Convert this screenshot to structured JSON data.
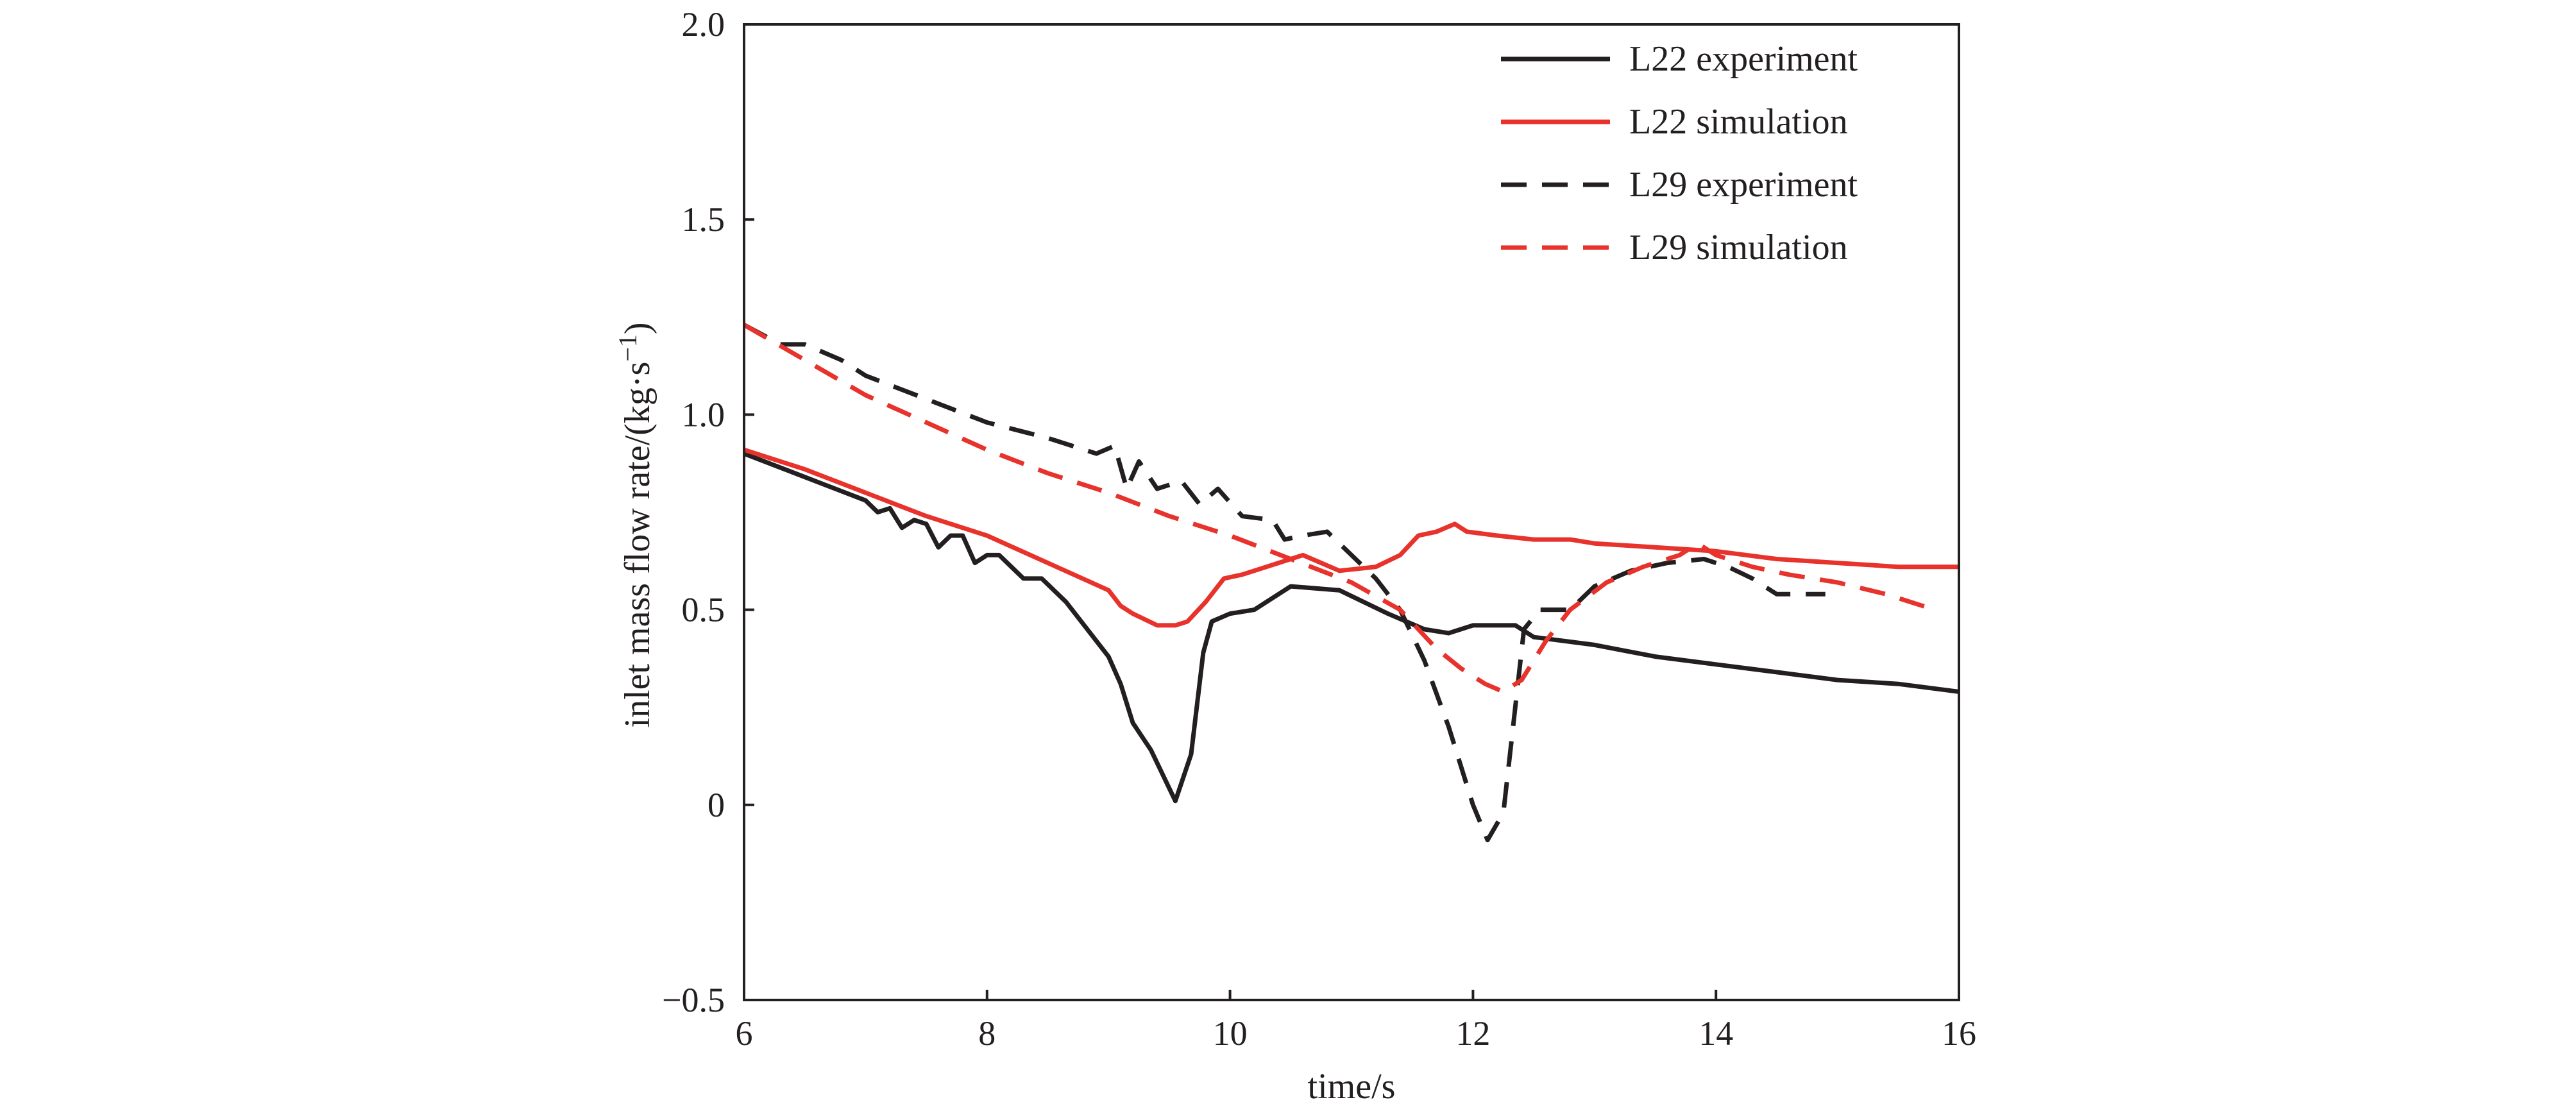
{
  "chart_data": {
    "type": "line",
    "xlabel": "time/s",
    "ylabel_main": "inlet mass flow rate/(kg·s",
    "ylabel_sup": "−1",
    "ylabel_close": ")",
    "xlim": [
      6,
      16
    ],
    "ylim": [
      -0.5,
      2.0
    ],
    "xticks": [
      6,
      8,
      10,
      12,
      14,
      16
    ],
    "xtick_labels": [
      "6",
      "8",
      "10",
      "12",
      "14",
      "16"
    ],
    "yticks": [
      -0.5,
      0,
      0.5,
      1.0,
      1.5,
      2.0
    ],
    "ytick_labels": [
      "−0.5",
      "0",
      "0.5",
      "1.0",
      "1.5",
      "2.0"
    ],
    "grid": false,
    "legend_position": "top-right",
    "series": [
      {
        "name": "L22 experiment",
        "color": "#231f20",
        "dash": "solid",
        "points": [
          [
            6.0,
            0.9
          ],
          [
            6.5,
            0.84
          ],
          [
            7.0,
            0.78
          ],
          [
            7.1,
            0.75
          ],
          [
            7.2,
            0.76
          ],
          [
            7.3,
            0.71
          ],
          [
            7.4,
            0.73
          ],
          [
            7.5,
            0.72
          ],
          [
            7.6,
            0.66
          ],
          [
            7.7,
            0.69
          ],
          [
            7.8,
            0.69
          ],
          [
            7.9,
            0.62
          ],
          [
            8.0,
            0.64
          ],
          [
            8.1,
            0.64
          ],
          [
            8.3,
            0.58
          ],
          [
            8.45,
            0.58
          ],
          [
            8.65,
            0.52
          ],
          [
            9.0,
            0.38
          ],
          [
            9.1,
            0.31
          ],
          [
            9.2,
            0.21
          ],
          [
            9.35,
            0.14
          ],
          [
            9.55,
            0.01
          ],
          [
            9.68,
            0.13
          ],
          [
            9.78,
            0.39
          ],
          [
            9.85,
            0.47
          ],
          [
            10.0,
            0.49
          ],
          [
            10.2,
            0.5
          ],
          [
            10.5,
            0.56
          ],
          [
            10.9,
            0.55
          ],
          [
            11.3,
            0.49
          ],
          [
            11.6,
            0.45
          ],
          [
            11.8,
            0.44
          ],
          [
            12.0,
            0.46
          ],
          [
            12.2,
            0.46
          ],
          [
            12.35,
            0.46
          ],
          [
            12.5,
            0.43
          ],
          [
            13.0,
            0.41
          ],
          [
            13.5,
            0.38
          ],
          [
            14.0,
            0.36
          ],
          [
            14.5,
            0.34
          ],
          [
            15.0,
            0.32
          ],
          [
            15.5,
            0.31
          ],
          [
            16.0,
            0.29
          ]
        ]
      },
      {
        "name": "L22 simulation",
        "color": "#e8322c",
        "dash": "solid",
        "points": [
          [
            6.0,
            0.91
          ],
          [
            6.5,
            0.86
          ],
          [
            7.0,
            0.8
          ],
          [
            7.5,
            0.74
          ],
          [
            8.0,
            0.69
          ],
          [
            8.5,
            0.62
          ],
          [
            9.0,
            0.55
          ],
          [
            9.1,
            0.51
          ],
          [
            9.2,
            0.49
          ],
          [
            9.4,
            0.46
          ],
          [
            9.55,
            0.46
          ],
          [
            9.65,
            0.47
          ],
          [
            9.8,
            0.52
          ],
          [
            9.95,
            0.58
          ],
          [
            10.1,
            0.59
          ],
          [
            10.3,
            0.61
          ],
          [
            10.5,
            0.63
          ],
          [
            10.6,
            0.64
          ],
          [
            10.75,
            0.62
          ],
          [
            10.9,
            0.6
          ],
          [
            11.2,
            0.61
          ],
          [
            11.4,
            0.64
          ],
          [
            11.55,
            0.69
          ],
          [
            11.7,
            0.7
          ],
          [
            11.85,
            0.72
          ],
          [
            11.95,
            0.7
          ],
          [
            12.2,
            0.69
          ],
          [
            12.5,
            0.68
          ],
          [
            12.8,
            0.68
          ],
          [
            13.0,
            0.67
          ],
          [
            13.5,
            0.66
          ],
          [
            14.0,
            0.65
          ],
          [
            14.5,
            0.63
          ],
          [
            15.0,
            0.62
          ],
          [
            15.5,
            0.61
          ],
          [
            16.0,
            0.61
          ]
        ]
      },
      {
        "name": "L29 experiment",
        "color": "#231f20",
        "dash": "dashed",
        "points": [
          [
            6.0,
            1.23
          ],
          [
            6.3,
            1.18
          ],
          [
            6.5,
            1.18
          ],
          [
            6.8,
            1.14
          ],
          [
            7.0,
            1.1
          ],
          [
            7.5,
            1.04
          ],
          [
            8.0,
            0.98
          ],
          [
            8.5,
            0.94
          ],
          [
            8.9,
            0.9
          ],
          [
            9.05,
            0.92
          ],
          [
            9.15,
            0.81
          ],
          [
            9.25,
            0.88
          ],
          [
            9.4,
            0.81
          ],
          [
            9.6,
            0.83
          ],
          [
            9.75,
            0.77
          ],
          [
            9.9,
            0.81
          ],
          [
            10.1,
            0.74
          ],
          [
            10.35,
            0.73
          ],
          [
            10.45,
            0.68
          ],
          [
            10.6,
            0.69
          ],
          [
            10.8,
            0.7
          ],
          [
            11.0,
            0.64
          ],
          [
            11.2,
            0.58
          ],
          [
            11.4,
            0.5
          ],
          [
            11.6,
            0.37
          ],
          [
            11.8,
            0.2
          ],
          [
            12.0,
            0.0
          ],
          [
            12.12,
            -0.09
          ],
          [
            12.25,
            -0.02
          ],
          [
            12.33,
            0.2
          ],
          [
            12.42,
            0.45
          ],
          [
            12.55,
            0.5
          ],
          [
            12.8,
            0.5
          ],
          [
            13.0,
            0.56
          ],
          [
            13.3,
            0.6
          ],
          [
            13.6,
            0.62
          ],
          [
            13.9,
            0.63
          ],
          [
            14.1,
            0.61
          ],
          [
            14.3,
            0.58
          ],
          [
            14.5,
            0.54
          ],
          [
            14.7,
            0.54
          ],
          [
            14.9,
            0.54
          ]
        ]
      },
      {
        "name": "L29 simulation",
        "color": "#e8322c",
        "dash": "dashed",
        "points": [
          [
            6.0,
            1.23
          ],
          [
            6.5,
            1.14
          ],
          [
            7.0,
            1.05
          ],
          [
            7.5,
            0.98
          ],
          [
            8.0,
            0.91
          ],
          [
            8.5,
            0.85
          ],
          [
            9.0,
            0.8
          ],
          [
            9.5,
            0.74
          ],
          [
            10.0,
            0.69
          ],
          [
            10.5,
            0.63
          ],
          [
            11.0,
            0.57
          ],
          [
            11.4,
            0.5
          ],
          [
            11.7,
            0.4
          ],
          [
            11.9,
            0.35
          ],
          [
            12.1,
            0.31
          ],
          [
            12.25,
            0.29
          ],
          [
            12.4,
            0.32
          ],
          [
            12.6,
            0.42
          ],
          [
            12.8,
            0.5
          ],
          [
            13.1,
            0.57
          ],
          [
            13.4,
            0.61
          ],
          [
            13.7,
            0.64
          ],
          [
            13.85,
            0.67
          ],
          [
            14.0,
            0.64
          ],
          [
            14.3,
            0.61
          ],
          [
            14.6,
            0.59
          ],
          [
            15.0,
            0.57
          ],
          [
            15.4,
            0.54
          ],
          [
            15.8,
            0.5
          ]
        ]
      }
    ]
  }
}
